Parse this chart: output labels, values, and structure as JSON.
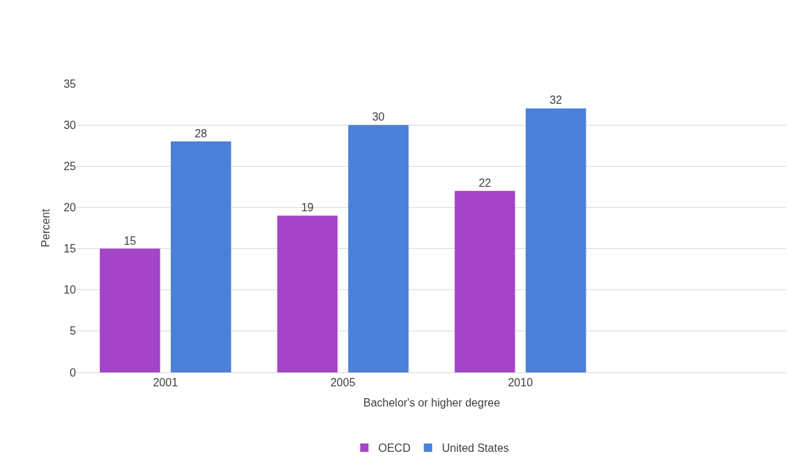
{
  "chart_data": {
    "type": "bar",
    "xlabel": "Bachelor's or higher degree",
    "ylabel": "Percent",
    "categories": [
      "2001",
      "2005",
      "2010",
      null
    ],
    "series": [
      {
        "name": "OECD",
        "color": "#a444c8",
        "values": [
          15,
          19,
          22,
          null
        ]
      },
      {
        "name": "United States",
        "color": "#4a80d8",
        "values": [
          28,
          30,
          32,
          null
        ]
      }
    ],
    "ylim": [
      0,
      35
    ],
    "yticks": [
      0,
      5,
      10,
      15,
      20,
      25,
      30,
      35
    ],
    "grid": "y",
    "legend": "bottom",
    "data_labels": true
  }
}
